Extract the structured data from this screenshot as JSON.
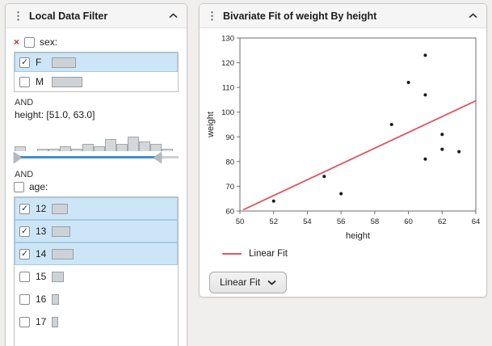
{
  "filter_panel": {
    "title": "Local Data Filter",
    "and_labels": [
      "AND",
      "AND"
    ],
    "sex": {
      "label": "sex:",
      "select_all_checked": false,
      "items": [
        {
          "label": "F",
          "checked": true,
          "selected": true,
          "bar": 30
        },
        {
          "label": "M",
          "checked": false,
          "selected": false,
          "bar": 38
        }
      ]
    },
    "height": {
      "label": "height: [51.0, 63.0]",
      "histogram_counts": [
        2,
        0,
        1,
        1,
        2,
        1,
        3,
        2,
        5,
        3,
        6,
        4,
        3,
        1
      ],
      "slider": {
        "low_pct": 0,
        "high_pct": 86
      }
    },
    "age": {
      "label": "age:",
      "select_all_checked": false,
      "items": [
        {
          "label": "12",
          "checked": true,
          "selected": true,
          "bar": 20
        },
        {
          "label": "13",
          "checked": true,
          "selected": true,
          "bar": 23
        },
        {
          "label": "14",
          "checked": true,
          "selected": true,
          "bar": 27
        },
        {
          "label": "15",
          "checked": false,
          "selected": false,
          "bar": 15
        },
        {
          "label": "16",
          "checked": false,
          "selected": false,
          "bar": 9
        },
        {
          "label": "17",
          "checked": false,
          "selected": false,
          "bar": 8
        }
      ]
    }
  },
  "bivariate_panel": {
    "title": "Bivariate Fit of weight By height",
    "legend": {
      "label": "Linear Fit",
      "color": "#e0545f"
    },
    "dropdown": {
      "label": "Linear Fit"
    }
  },
  "chart_data": {
    "type": "scatter",
    "title": "Bivariate Fit of weight By height",
    "xlabel": "height",
    "ylabel": "weight",
    "xlim": [
      50,
      64
    ],
    "ylim": [
      60,
      130
    ],
    "xticks": [
      50,
      52,
      54,
      56,
      58,
      60,
      62,
      64
    ],
    "yticks": [
      60,
      70,
      80,
      90,
      100,
      110,
      120,
      130
    ],
    "grid": false,
    "point_color": "#1a1a1a",
    "points": [
      [
        52,
        64
      ],
      [
        55,
        74
      ],
      [
        56,
        67
      ],
      [
        59,
        95
      ],
      [
        60,
        112
      ],
      [
        61,
        107
      ],
      [
        61,
        123
      ],
      [
        61,
        81
      ],
      [
        62,
        85
      ],
      [
        62,
        91
      ],
      [
        63,
        84
      ]
    ],
    "fit_line": {
      "name": "Linear Fit",
      "color": "#e0545f",
      "x": [
        50.2,
        64
      ],
      "y": [
        60.5,
        104.6
      ]
    }
  }
}
